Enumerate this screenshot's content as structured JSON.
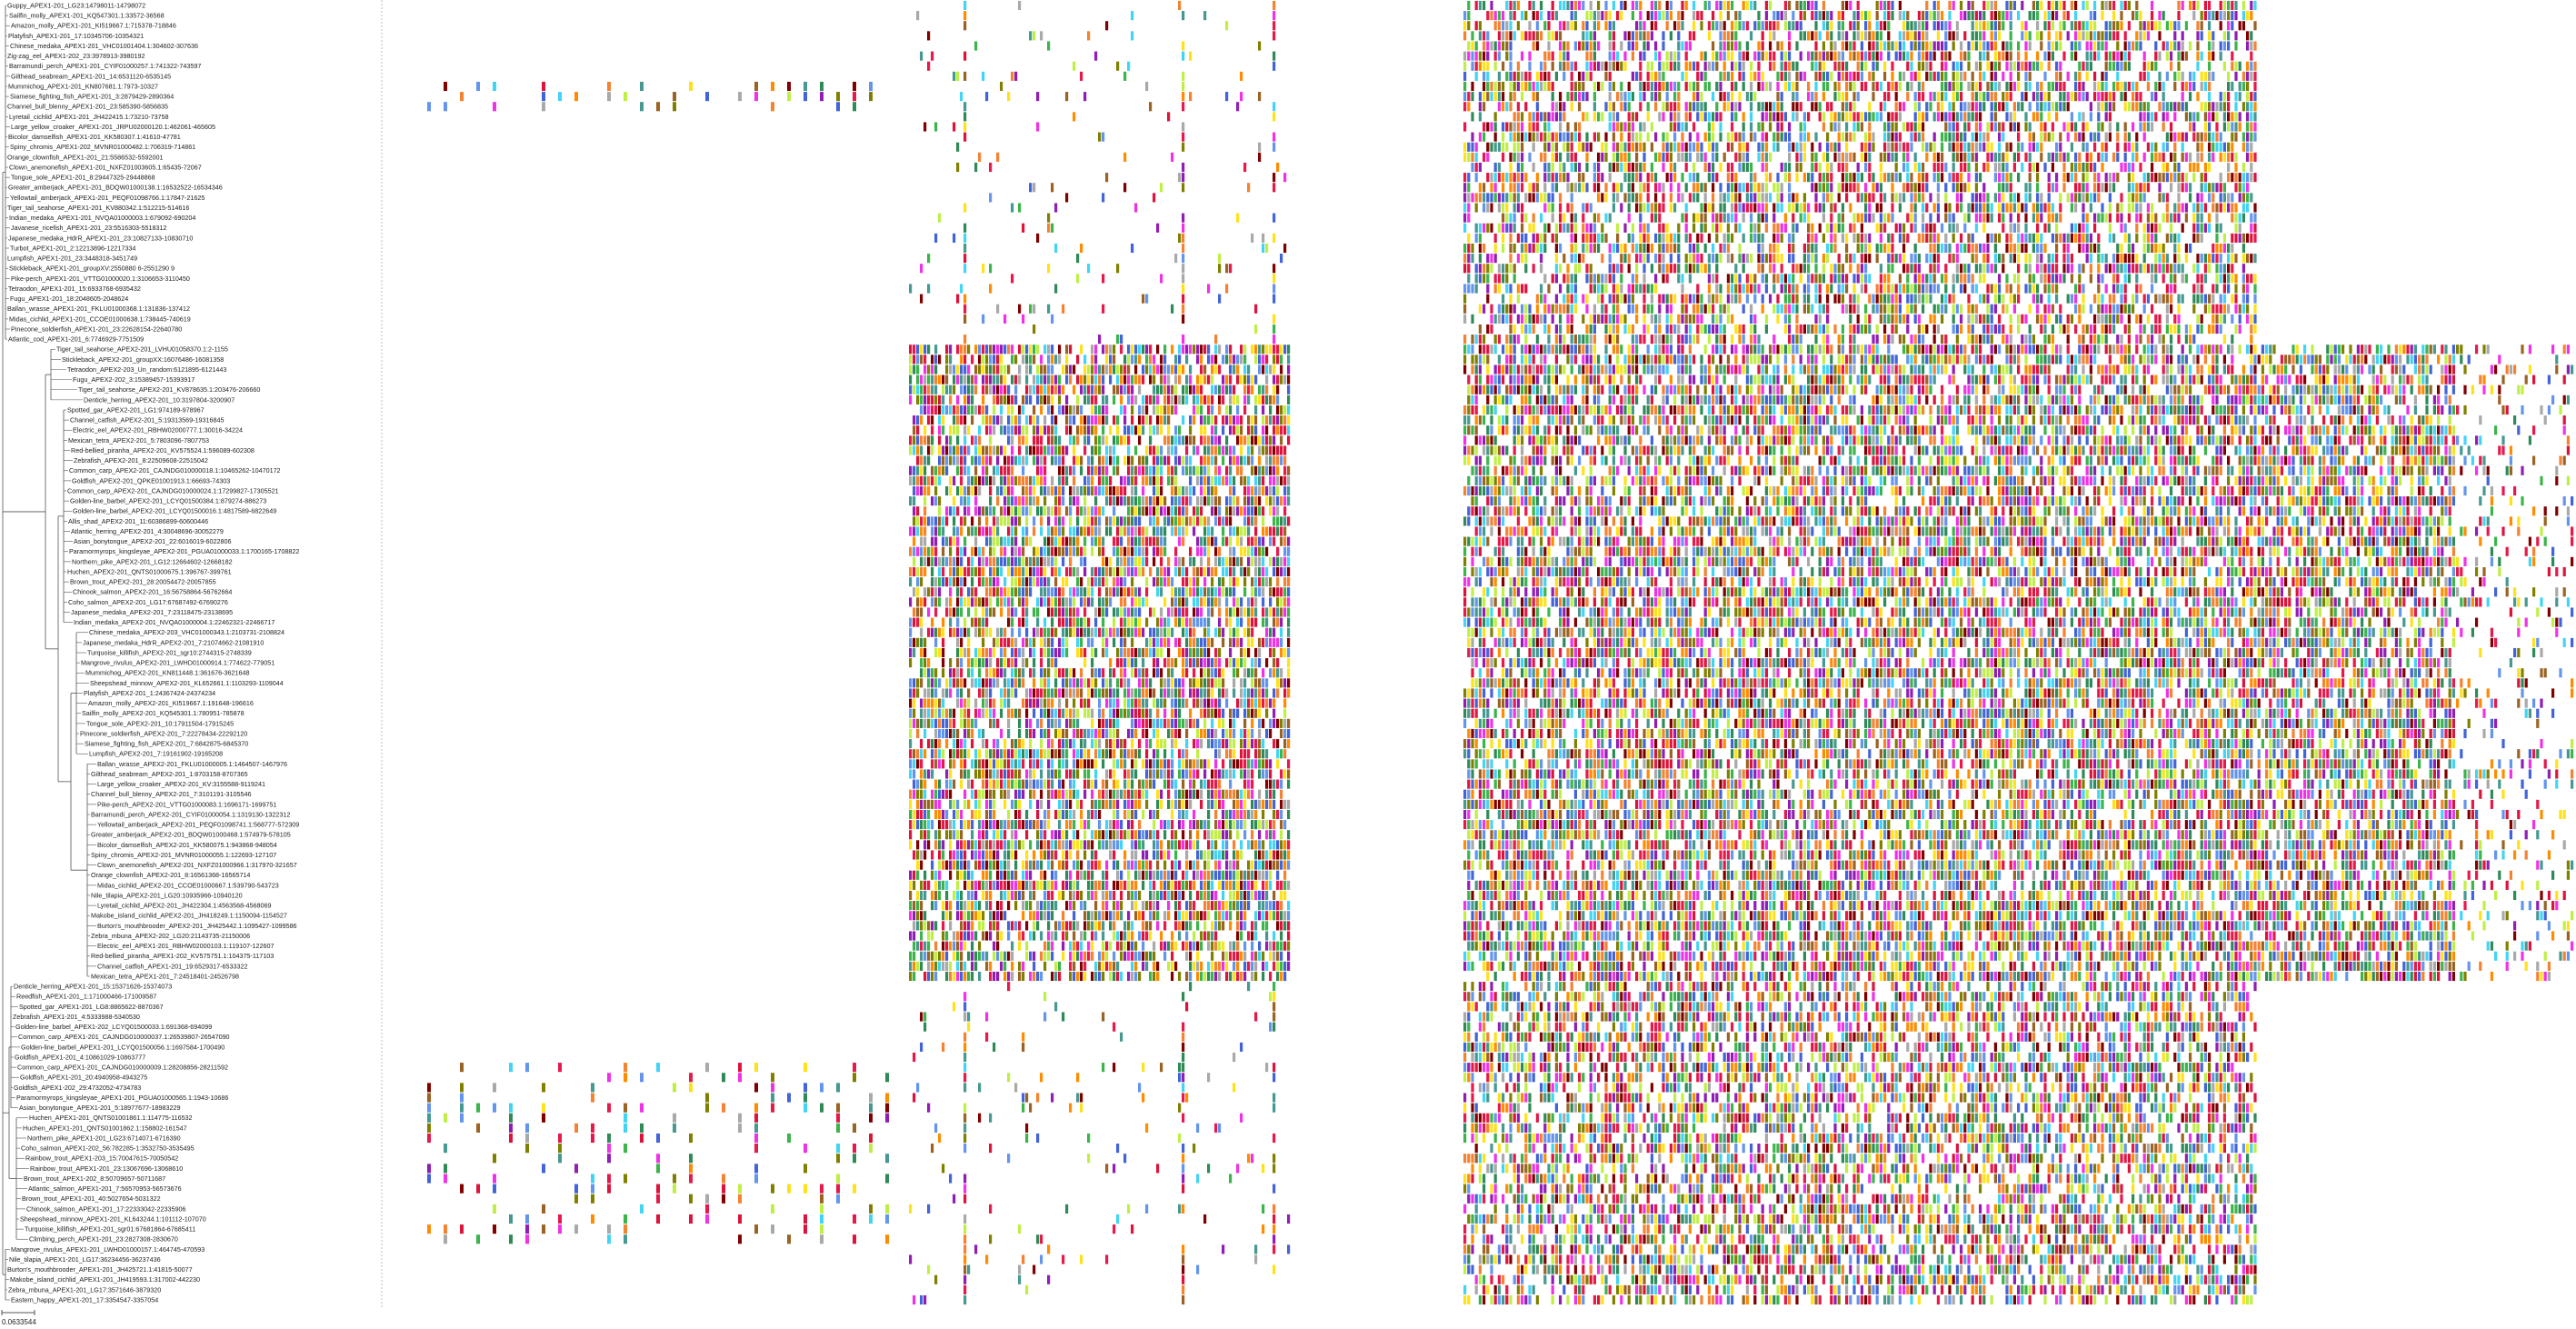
{
  "figure": {
    "description": "Phylogenetic tree of APEX1/APEX2 sequences with aligned multiple-sequence-alignment blocks",
    "tree_line_color": "#555555",
    "divider_color": "#bfbfbf",
    "scale_bar_label": "0.0633544"
  },
  "labels": [
    "Guppy_APEX1-201_LG23:14798011-14798072",
    "Sailfin_molly_APEX1-201_KQ547301.1:33572-36568",
    "Amazon_molly_APEX1-201_KI519667.1:715378-718846",
    "Platyfish_APEX1-201_17:10345706-10354321",
    "Chinese_medaka_APEX1-201_VHC01001404.1:304602-307636",
    "Zig-zag_eel_APEX1-202_23:3978913-3980192",
    "Barramundi_perch_APEX1-201_CYIF01000257.1:741322-743597",
    "Gilthead_seabream_APEX1-201_14:6531120-6535145",
    "Mummichog_APEX1-201_KN807681.1:7973-10327",
    "Siamese_fighting_fish_APEX1-201_3:2879429-2890364",
    "Channel_bull_blenny_APEX1-201_23:585390-5856835",
    "Lyretail_cichlid_APEX1-201_JH422415.1:73210-73758",
    "Large_yellow_croaker_APEX1-201_JRPU02000120.1:462061-465605",
    "Bicolor_damselfish_APEX1-201_KK580307.1:41610-47781",
    "Spiny_chromis_APEX1-202_MVNR01000482.1:706319-714861",
    "Orange_clownfish_APEX1-201_21:5586532-5592001",
    "Clown_anemonefish_APEX1-201_NXFZ01003605.1:65435-72067",
    "Tongue_sole_APEX1-201_8:29447325-29448868",
    "Greater_amberjack_APEX1-201_BDQW01000138.1:16532522-16534346",
    "Yellowtail_amberjack_APEX1-201_PEQF01098766.1:17847-21625",
    "Tiger_tail_seahorse_APEX1-201_KV880342.1:512215-514616",
    "Indian_medaka_APEX1-201_NVQA01000003.1:679092-690204",
    "Javanese_ricefish_APEX1-201_23:5516303-5518312",
    "Japanese_medaka_HdrR_APEX1-201_23:10827133-10830710",
    "Turbot_APEX1-201_2:12213896-12217334",
    "Lumpfish_APEX1-201_23:3448318-3451749",
    "Stickleback_APEX1-201_groupXV:2550880 6-2551290 9",
    "Pike-perch_APEX1-201_VTTG01000020.1:3106653-3110450",
    "Tetraodon_APEX1-201_15:6933768-6935432",
    "Fugu_APEX1-201_18:2048605-2048624",
    "Ballan_wrasse_APEX1-201_FKLU01000368.1:131836-137412",
    "Midas_cichlid_APEX1-201_CCOE01000638.1:738445-740619",
    "Pinecone_soldierfish_APEX1-201_23:22628154-22640780",
    "Atlantic_cod_APEX1-201_6:7746929-7751509",
    "Tiger_tail_seahorse_APEX2-201_LVHU01058370.1:2-1155",
    "Stickleback_APEX2-201_groupXX:16076486-16081358",
    "Tetraodon_APEX2-203_Un_random:6121895-6121443",
    "Fugu_APEX2-202_3:15389457-15393917",
    "Tiger_tail_seahorse_APEX2-201_KV878635.1:203476-206660",
    "Denticle_herring_APEX2-201_10:3197804-3200907",
    "Spotted_gar_APEX2-201_LG1:974189-978967",
    "Channel_catfish_APEX2-201_5:19313569-19316845",
    "Electric_eel_APEX2-201_RBHW02000777.1:30016-34224",
    "Mexican_tetra_APEX2-201_5:7803096-7807753",
    "Red-bellied_piranha_APEX2-201_KV575524.1:596089-602308",
    "Zebrafish_APEX2-201_8:22509608-22515042",
    "Common_carp_APEX2-201_CAJNDG010000018.1:10465262-10470172",
    "Goldfish_APEX2-201_QPKE01001913.1:66693-74303",
    "Common_carp_APEX2-201_CAJNDG010000024.1:17299827-17305521",
    "Golden-line_barbel_APEX2-201_LCYQ01500384.1:879274-886273",
    "Golden-line_barbel_APEX2-201_LCYQ01500016.1:4817589-6822649",
    "Allis_shad_APEX2-201_11:60386899-60600446",
    "Atlantic_herring_APEX2-201_4:30048696-30052279",
    "Asian_bonytongue_APEX2-201_22:6016019-6022806",
    "Paramormyrops_kingsleyae_APEX2-201_PGUA01000033.1:1700165-1708822",
    "Northern_pike_APEX2-201_LG12:12664602-12668182",
    "Huchen_APEX2-201_QNTS01000675.1:396767-399761",
    "Brown_trout_APEX2-201_28:20054472-20057855",
    "Chinook_salmon_APEX2-201_16:56758864-56762664",
    "Coho_salmon_APEX2-201_LG17:67687492-67690276",
    "Japanese_medaka_APEX2-201_7:23118475-23138695",
    "Indian_medaka_APEX2-201_NVQA01000004.1:22462321-22466717",
    "Chinese_medaka_APEX2-203_VHC01000343.1:2103731-2108824",
    "Japanese_medaka_HdrR_APEX2-201_7:21074662-21081910",
    "Turquoise_killifish_APEX2-201_sgr10:2744315-2748339",
    "Mangrove_rivulus_APEX2-201_LWHD01000914.1:774622-779051",
    "Mummichog_APEX2-201_KN811448.1:361676-3621648",
    "Sheepshead_minnow_APEX2-201_KL652661.1:1103293-1109044",
    "Platyfish_APEX2-201_1:24367424-24374234",
    "Amazon_molly_APEX2-201_KI519667.1:191648-196616",
    "Sailfin_molly_APEX2-201_KQ545301.1:780951-785878",
    "Tongue_sole_APEX2-201_10:17911504-17915245",
    "Pinecone_soldierfish_APEX2-201_7:22278434-22292120",
    "Siamese_fighting_fish_APEX2-201_7:6842875-6845370",
    "Lumpfish_APEX2-201_7:19161902-19165208",
    "Ballan_wrasse_APEX2-201_FKLU01000005.1:1464507-1467976",
    "Gilthead_seabream_APEX2-201_1:8703158-8707365",
    "Large_yellow_croaker_APEX2-201_KV:3155588-9119241",
    "Channel_bull_blenny_APEX2-201_7:3101191-3105546",
    "Pike-perch_APEX2-201_VTTG01000083.1:1696171-1699751",
    "Barramundi_perch_APEX2-201_CYIF01000054.1:1319130-1322312",
    "Yellowtail_amberjack_APEX2-201_PEQF01098741.1:568777-572309",
    "Greater_amberjack_APEX2-201_BDQW01000468.1:574979-578105",
    "Bicolor_damselfish_APEX2-201_KK580075.1:943868-948054",
    "Spiny_chromis_APEX2-201_MVNR01000055.1:122693-127107",
    "Clown_anemonefish_APEX2-201_NXFZ01000966.1:317970-321657",
    "Orange_clownfish_APEX2-201_8:16561368-16565714",
    "Midas_cichlid_APEX2-201_CCOE01000667.1:539790-543723",
    "Nile_tilapia_APEX2-201_LG20:10935966-10940120",
    "Lyretail_cichlid_APEX2-201_JH422304.1:4563568-4568069",
    "Makobe_island_cichlid_APEX2-201_JH418249.1:1150094-1154527",
    "Burton's_mouthbrooder_APEX2-201_JH425442.1:1095427-1099586",
    "Zebra_mbuna_APEX2-202_LG20:21143735-21150006",
    "Electric_eel_APEX1-201_RBHW02000103.1:119107-122607",
    "Red-bellied_piranha_APEX1-202_KV575751.1:104375-117103",
    "Channel_catfish_APEX1-201_19:6529317-6533322",
    "Mexican_tetra_APEX1-201_7:24518401-24526798",
    "Denticle_herring_APEX1-201_15:15371626-15374073",
    "Reedfish_APEX1-201_1:171000466-171009587",
    "Spotted_gar_APEX1-201_LG8:8865622-8870367",
    "Zebrafish_APEX1-201_4:5333988-5340530",
    "Golden-line_barbel_APEX1-202_LCYQ01500033.1:691368-694099",
    "Common_carp_APEX1-201_CAJNDG010000037.1:26539807-26547090",
    "Golden-line_barbel_APEX1-201_LCYQ01500056.1:1697584-1700490",
    "Goldfish_APEX1-201_4:10861029-10863777",
    "Common_carp_APEX1-201_CAJNDG010000009.1:28208856-28211592",
    "Goldfish_APEX1-201_20:4940958-4943275",
    "Goldfish_APEX1-202_29:4732052-4734783",
    "Paramormyrops_kingsleyae_APEX1-201_PGUA01000565.1:1943-10686",
    "Asian_bonytongue_APEX1-201_5:18977677-18983229",
    "Huchen_APEX1-201_QNTS01001861.1:114775-116532",
    "Huchen_APEX1-201_QNTS01001862.1:158802-161547",
    "Northern_pike_APEX1-201_LG23:6714071-6716390",
    "Coho_salmon_APEX1-202_56:782285-1:3532750-3535495",
    "Rainbow_trout_APEX1-203_15:70047615-70050542",
    "Rainbow_trout_APEX1-201_23:13067696-13068610",
    "Brown_trout_APEX1-202_8:50709657-50711687",
    "Atlantic_salmon_APEX1-201_7:56570953-56573676",
    "Brown_trout_APEX1-201_40:5027654-5031322",
    "Chinook_salmon_APEX1-201_17:22333042-22335906",
    "Sheepshead_minnow_APEX1-201_KL643244.1:101112-107070",
    "Turquoise_killifish_APEX1-201_sgr01:67681864-67685411",
    "Climbing_perch_APEX1-201_23:2827308-2830670",
    "Mangrove_rivulus_APEX1-201_LWHD01000157.1:464745-470593",
    "Nile_tilapia_APEX1-201_LG17:36234456-36237436",
    "Burton's_mouthbrooder_APEX1-201_JH425721.1:41815-50077",
    "Makobe_island_cichlid_APEX1-201_JH419593.1:317002-442230",
    "Zebra_mbuna_APEX1-201_LG17:3571646-3879320",
    "Eastern_happy_APEX1-201_17:3354547-3357054"
  ]
}
